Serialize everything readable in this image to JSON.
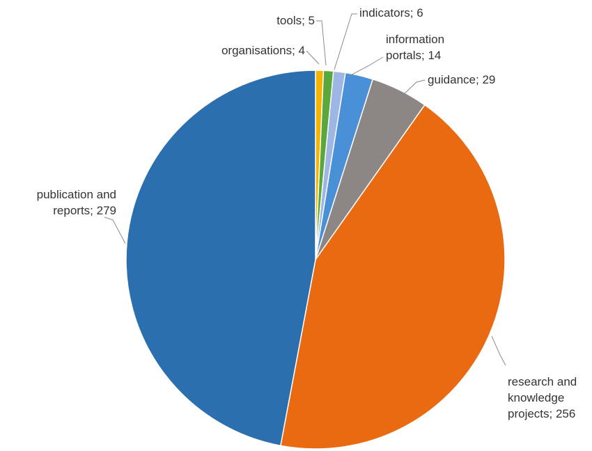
{
  "chart_data": {
    "type": "pie",
    "title": "",
    "start": "top",
    "direction": "clockwise",
    "slices": [
      {
        "label": "organisations",
        "value": 4,
        "color": "#F5B400"
      },
      {
        "label": "tools",
        "value": 5,
        "color": "#5BA83A"
      },
      {
        "label": "indicators",
        "value": 6,
        "color": "#9DB6E3"
      },
      {
        "label": "information portals",
        "value": 14,
        "color": "#4A90D6"
      },
      {
        "label": "guidance",
        "value": 29,
        "color": "#8C8684"
      },
      {
        "label": "research and knowledge projects",
        "value": 256,
        "color": "#EA6A12"
      },
      {
        "label": "publication and reports",
        "value": 279,
        "color": "#2C6FAE"
      }
    ],
    "data_labels": [
      [
        "organisations; 4"
      ],
      [
        "tools; 5"
      ],
      [
        "indicators; 6"
      ],
      [
        "information",
        "portals; 14"
      ],
      [
        "guidance; 29"
      ],
      [
        "research and",
        "knowledge",
        "projects; 256"
      ],
      [
        "publication and",
        "reports; 279"
      ]
    ]
  }
}
